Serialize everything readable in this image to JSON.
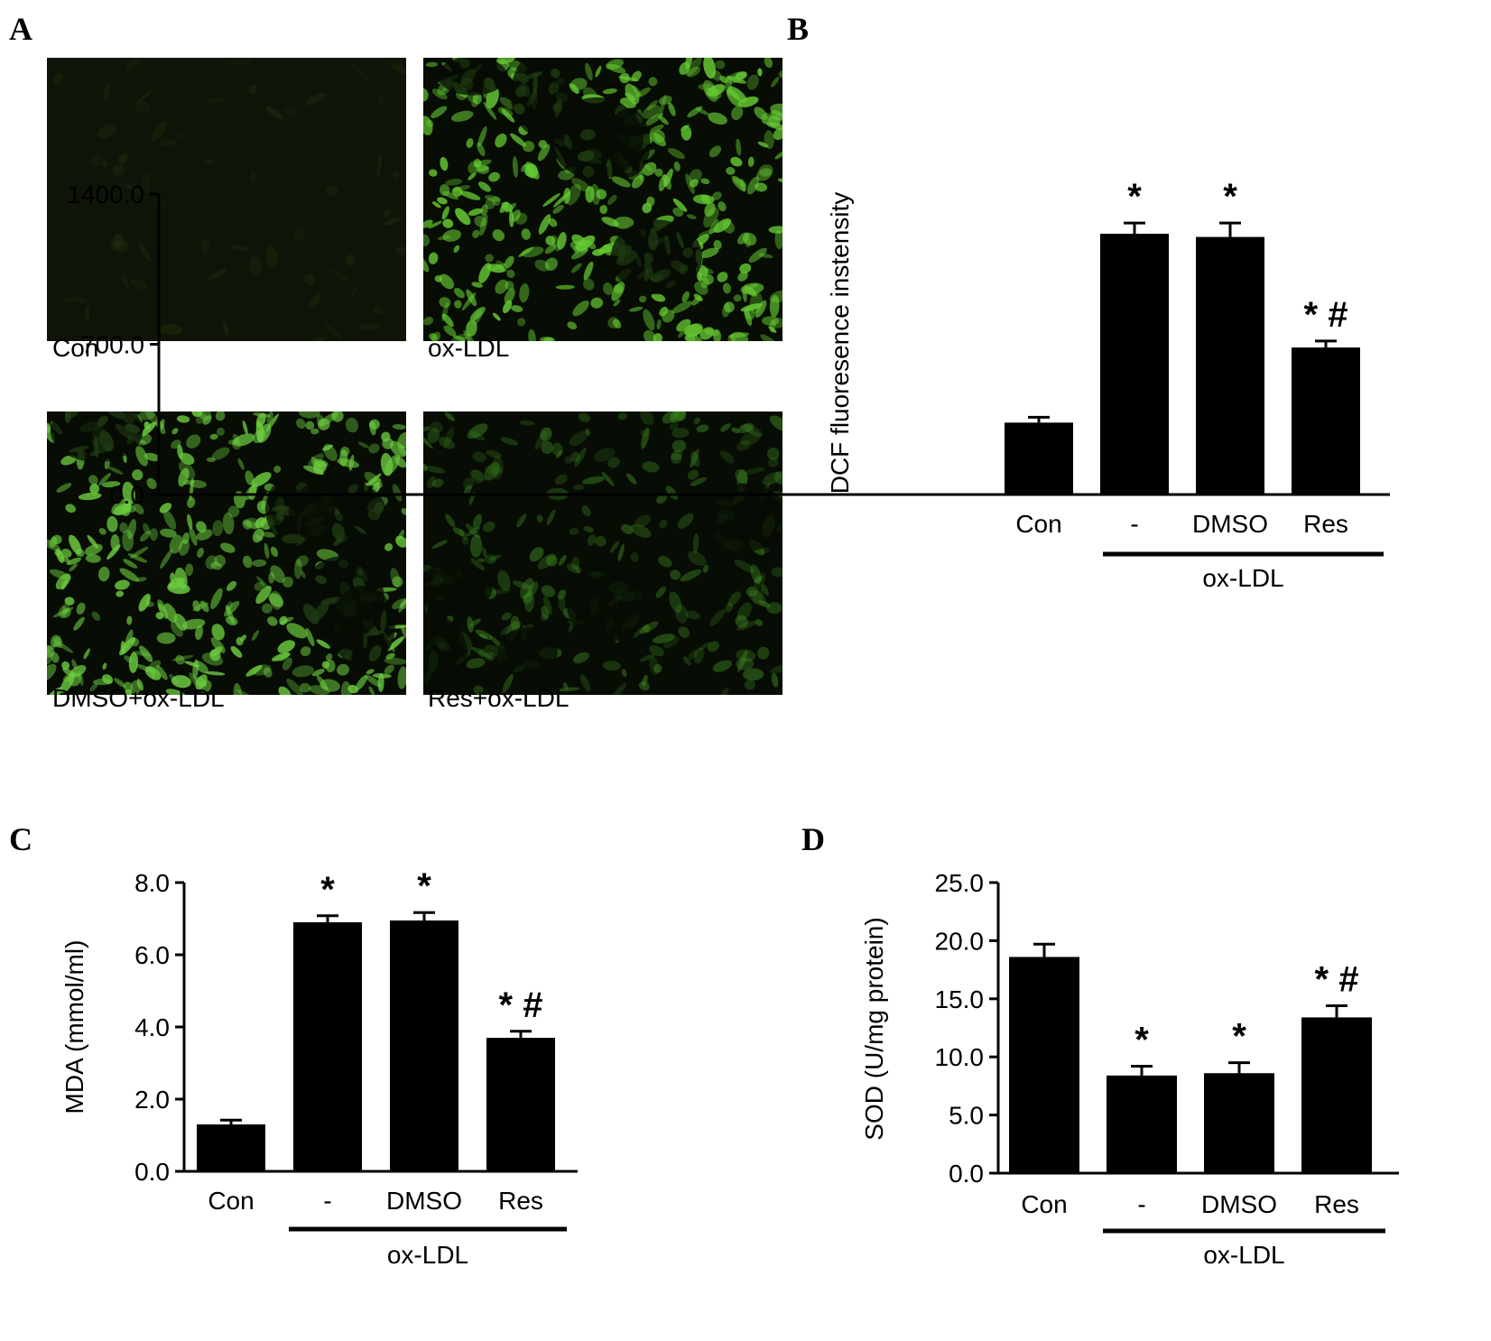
{
  "panels": {
    "a": {
      "letter": "A"
    },
    "b": {
      "letter": "B"
    },
    "c": {
      "letter": "C"
    },
    "d": {
      "letter": "D"
    }
  },
  "micrographs": [
    {
      "caption": "Con",
      "intensity": "dim",
      "color": "#2b3a10"
    },
    {
      "caption": "ox-LDL",
      "intensity": "bright",
      "color": "#66cc33"
    },
    {
      "caption": "DMSO+ox-LDL",
      "intensity": "bright",
      "color": "#6ccc40"
    },
    {
      "caption": "Res+ox-LDL",
      "intensity": "moderate",
      "color": "#3f8a22"
    }
  ],
  "chart_data": [
    {
      "panel": "B",
      "type": "bar",
      "categories": [
        "Con",
        "-",
        "DMSO",
        "Res"
      ],
      "values": [
        335,
        1215,
        1200,
        685
      ],
      "errors": [
        25,
        50,
        65,
        30
      ],
      "significance": [
        "",
        "*",
        "*",
        "* #"
      ],
      "ylabel": "DCF fluoresence instensity",
      "ylim": [
        0,
        1400
      ],
      "yticks": [
        0,
        700,
        1400
      ],
      "ytick_labels": [
        "0.0",
        "700.0",
        "1400.0"
      ],
      "group_label": "ox-LDL",
      "group_categories": [
        "-",
        "DMSO",
        "Res"
      ],
      "bar_color": "#000000"
    },
    {
      "panel": "C",
      "type": "bar",
      "categories": [
        "Con",
        "-",
        "DMSO",
        "Res"
      ],
      "values": [
        1.3,
        6.9,
        6.95,
        3.7
      ],
      "errors": [
        0.12,
        0.18,
        0.22,
        0.18
      ],
      "significance": [
        "",
        "*",
        "*",
        "* #"
      ],
      "ylabel": "MDA (mmol/ml)",
      "ylim": [
        0,
        8
      ],
      "yticks": [
        0,
        2,
        4,
        6,
        8
      ],
      "ytick_labels": [
        "0.0",
        "2.0",
        "4.0",
        "6.0",
        "8.0"
      ],
      "group_label": "ox-LDL",
      "group_categories": [
        "-",
        "DMSO",
        "Res"
      ],
      "bar_color": "#000000"
    },
    {
      "panel": "D",
      "type": "bar",
      "categories": [
        "Con",
        "-",
        "DMSO",
        "Res"
      ],
      "values": [
        18.6,
        8.4,
        8.6,
        13.4
      ],
      "errors": [
        1.1,
        0.8,
        0.9,
        1.0
      ],
      "significance": [
        "",
        "*",
        "*",
        "* #"
      ],
      "ylabel": "SOD (U/mg protein)",
      "ylim": [
        0,
        25
      ],
      "yticks": [
        0,
        5,
        10,
        15,
        20,
        25
      ],
      "ytick_labels": [
        "0.0",
        "5.0",
        "10.0",
        "15.0",
        "20.0",
        "25.0"
      ],
      "group_label": "ox-LDL",
      "group_categories": [
        "-",
        "DMSO",
        "Res"
      ],
      "bar_color": "#000000"
    }
  ]
}
